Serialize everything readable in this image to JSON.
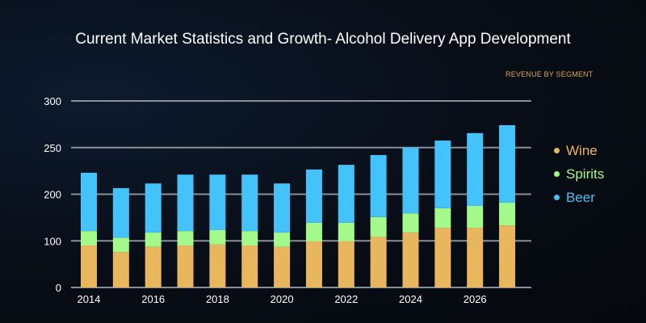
{
  "chart_data": {
    "type": "bar",
    "stacked": true,
    "title": "Current Market Statistics and Growth- Alcohol Delivery App Development",
    "subtitle": "REVENUE BY SEGMENT",
    "xlabel": "",
    "ylabel": "",
    "categories": [
      "2014",
      "2015",
      "2016",
      "2017",
      "2018",
      "2019",
      "2020",
      "2021",
      "2022",
      "2023",
      "2024",
      "2025",
      "2026",
      "2027"
    ],
    "x_tick_labels": [
      "2014",
      "",
      "2016",
      "",
      "2018",
      "",
      "2020",
      "",
      "2022",
      "",
      "2024",
      "",
      "2026",
      ""
    ],
    "y_tick_labels": [
      "0",
      "100",
      "200",
      "250",
      "300"
    ],
    "ylim": [
      0,
      400
    ],
    "grid": true,
    "legend_position": "right",
    "series": [
      {
        "name": "Wine",
        "color": "#e8b65c",
        "values": [
          90,
          76,
          87,
          90,
          92,
          90,
          87,
          99,
          99,
          109,
          118,
          128,
          128,
          133
        ]
      },
      {
        "name": "Spirits",
        "color": "#a3fa8a",
        "values": [
          31,
          31,
          31,
          31,
          31,
          31,
          31,
          40,
          40,
          42,
          41,
          42,
          47,
          49
        ]
      },
      {
        "name": "Beer",
        "color": "#44c3fb",
        "values": [
          125,
          106,
          105,
          121,
          119,
          121,
          105,
          114,
          124,
          133,
          141,
          145,
          156,
          166
        ]
      }
    ]
  }
}
